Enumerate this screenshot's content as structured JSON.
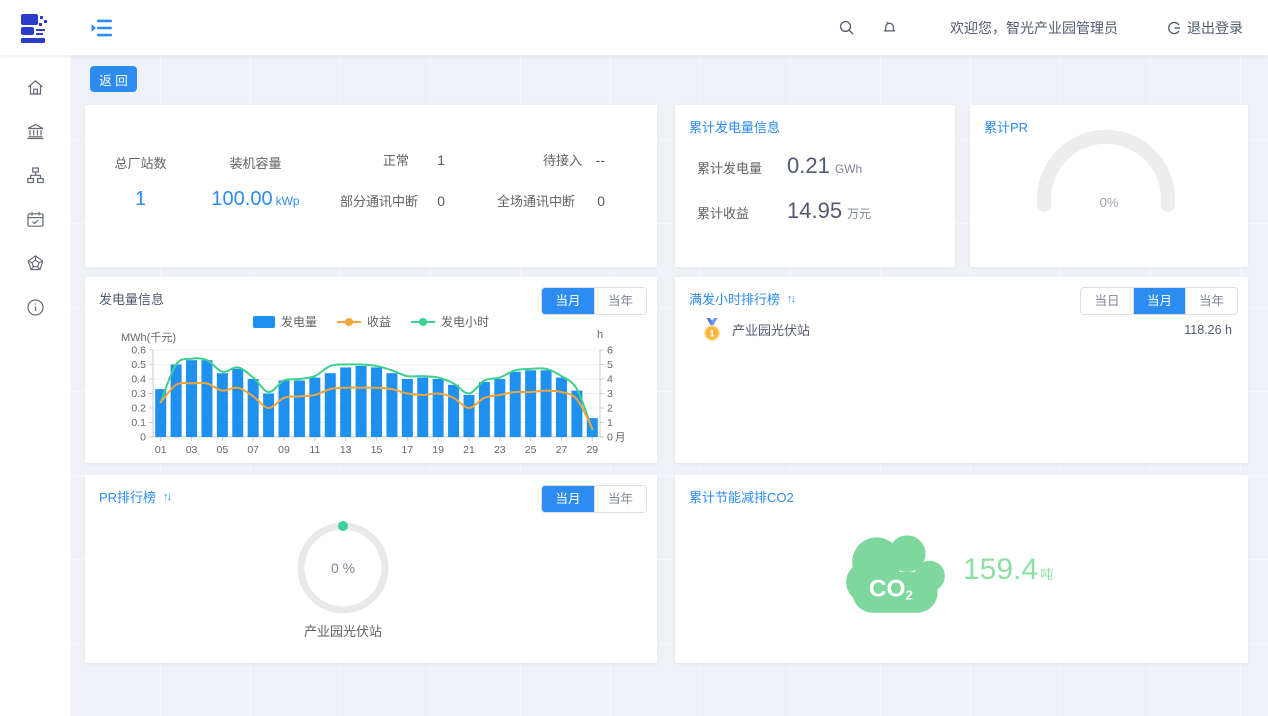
{
  "colors": {
    "accent": "#2d8cf0",
    "bar": "#1e90f0",
    "revenue_line": "#f5a43b",
    "hours_line": "#3ecf8e",
    "co2_green": "#7ed89d",
    "gauge_track": "#ededed"
  },
  "header": {
    "welcome_text": "欢迎您，智光产业园管理员",
    "logout_label": "退出登录"
  },
  "toolbar": {
    "back_label": "返 回"
  },
  "sidebar": {
    "icons": [
      "home",
      "bank",
      "topology",
      "calendar-check",
      "radar",
      "info"
    ]
  },
  "overview": {
    "total_stations_label": "总厂站数",
    "total_stations_value": "1",
    "capacity_label": "装机容量",
    "capacity_value": "100.00",
    "capacity_unit": "kWp",
    "normal_label": "正常",
    "normal_value": "1",
    "pending_label": "待接入",
    "pending_value": "--",
    "partial_comm_label": "部分通讯中断",
    "partial_comm_value": "0",
    "full_comm_label": "全场通讯中断",
    "full_comm_value": "0"
  },
  "cumulative_generation": {
    "title": "累计发电量信息",
    "gen_label": "累计发电量",
    "gen_value": "0.21",
    "gen_unit": "GWh",
    "income_label": "累计收益",
    "income_value": "14.95",
    "income_unit": "万元"
  },
  "cumulative_pr": {
    "title": "累计PR",
    "value": "0%"
  },
  "generation_panel": {
    "title": "发电量信息",
    "tabs": [
      {
        "label": "当月",
        "active": true
      },
      {
        "label": "当年",
        "active": false
      }
    ]
  },
  "full_hours_ranking": {
    "title": "满发小时排行榜",
    "sort_glyph": "↑↓",
    "tabs": [
      {
        "label": "当日",
        "active": false
      },
      {
        "label": "当月",
        "active": true
      },
      {
        "label": "当年",
        "active": false
      }
    ],
    "items": [
      {
        "rank": "1",
        "name": "产业园光伏站",
        "value": "118.26 h"
      }
    ]
  },
  "pr_ranking": {
    "title": "PR排行榜",
    "sort_glyph": "↑↓",
    "tabs": [
      {
        "label": "当月",
        "active": true
      },
      {
        "label": "当年",
        "active": false
      }
    ],
    "gauge_text": "0 %",
    "station": "产业园光伏站"
  },
  "co2_panel": {
    "title": "累计节能减排CO2",
    "cloud_label": "CO",
    "cloud_sub": "2",
    "value": "159.4",
    "unit": "吨"
  },
  "chart_data": {
    "type": "bar",
    "title": "发电量信息",
    "x": [
      "01",
      "02",
      "03",
      "04",
      "05",
      "06",
      "07",
      "08",
      "09",
      "10",
      "11",
      "12",
      "13",
      "14",
      "15",
      "16",
      "17",
      "18",
      "19",
      "20",
      "21",
      "22",
      "23",
      "24",
      "25",
      "26",
      "27",
      "28",
      "29"
    ],
    "x_label_step": 2,
    "x_name": "月",
    "left_axis": {
      "name": "MWh(千元)",
      "min": 0,
      "max": 0.6,
      "tick": 0.1
    },
    "right_axis": {
      "name": "h",
      "min": 0,
      "max": 6,
      "tick": 1
    },
    "legend_position": "top",
    "grid": "light",
    "series": [
      {
        "name": "发电量",
        "type": "bar",
        "axis": "left",
        "unit": "MWh",
        "color": "#1e90f0",
        "values": [
          0.33,
          0.5,
          0.53,
          0.53,
          0.44,
          0.47,
          0.4,
          0.3,
          0.39,
          0.39,
          0.41,
          0.44,
          0.48,
          0.49,
          0.48,
          0.44,
          0.4,
          0.41,
          0.4,
          0.36,
          0.29,
          0.38,
          0.4,
          0.45,
          0.46,
          0.46,
          0.41,
          0.32,
          0.13
        ]
      },
      {
        "name": "收益",
        "type": "line",
        "axis": "left",
        "unit": "千元",
        "color": "#f5a43b",
        "values": [
          0.24,
          0.36,
          0.37,
          0.37,
          0.32,
          0.34,
          0.28,
          0.2,
          0.27,
          0.28,
          0.29,
          0.33,
          0.34,
          0.34,
          0.34,
          0.33,
          0.3,
          0.29,
          0.3,
          0.27,
          0.2,
          0.27,
          0.29,
          0.31,
          0.31,
          0.32,
          0.31,
          0.26,
          0.06
        ]
      },
      {
        "name": "发电小时",
        "type": "line",
        "axis": "right",
        "unit": "h",
        "color": "#3ecf8e",
        "values": [
          2.4,
          5.0,
          5.4,
          5.3,
          4.5,
          4.8,
          4.1,
          3.1,
          3.9,
          4.0,
          4.2,
          4.9,
          5.0,
          5.0,
          4.9,
          4.6,
          4.2,
          4.2,
          4.1,
          3.7,
          3.0,
          3.9,
          4.1,
          4.6,
          4.7,
          4.7,
          4.2,
          3.3,
          0.5
        ]
      }
    ]
  }
}
